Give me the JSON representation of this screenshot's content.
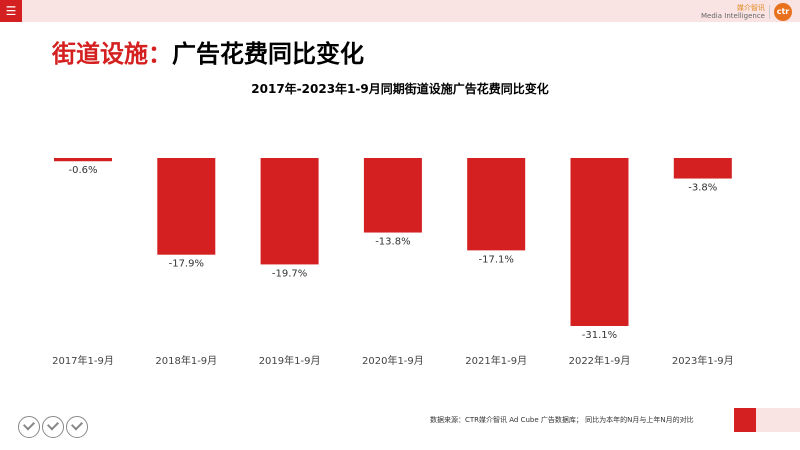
{
  "header": {
    "menu_icon": "hamburger-icon",
    "logo_cn": "媒介智讯",
    "logo_en": "Media Intelligence",
    "logo_mark": "ctr"
  },
  "title": {
    "part1": "街道设施：",
    "part2": "广告花费同比变化"
  },
  "chart_data": {
    "type": "bar",
    "title": "2017年-2023年1-9月同期街道设施广告花费同比变化",
    "categories": [
      "2017年1-9月",
      "2018年1-9月",
      "2019年1-9月",
      "2020年1-9月",
      "2021年1-9月",
      "2022年1-9月",
      "2023年1-9月"
    ],
    "values": [
      -0.6,
      -17.9,
      -19.7,
      -13.8,
      -17.1,
      -31.1,
      -3.8
    ],
    "labels": [
      "-0.6%",
      "-17.9%",
      "-19.7%",
      "-13.8%",
      "-17.1%",
      "-31.1%",
      "-3.8%"
    ],
    "ylim": [
      -31.1,
      0
    ],
    "color": "#d42020",
    "legend": "none",
    "grid": false
  },
  "footer": {
    "source": "数据来源：CTR媒介智讯 Ad Cube 广告数据库；  同比为本年的N月与上年N月的对比",
    "badges": [
      "badge-icon",
      "badge-icon",
      "badge-icon"
    ]
  }
}
